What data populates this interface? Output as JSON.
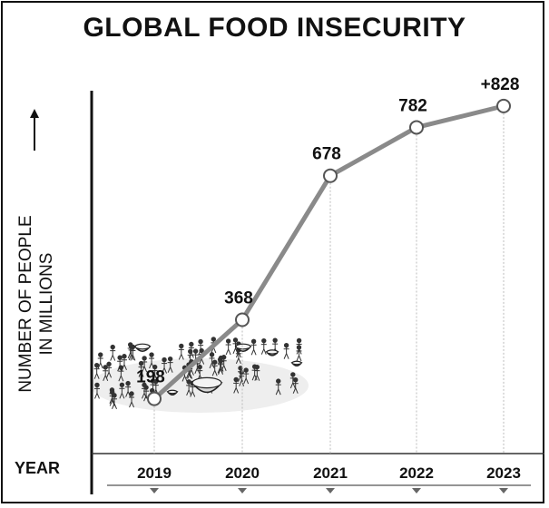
{
  "chart_data": {
    "type": "line",
    "title": "GLOBAL FOOD INSECURITY",
    "ylabel": "NUMBER OF PEOPLE IN MILLIONS",
    "ylabel_lines": [
      "NUMBER OF PEOPLE",
      "IN MILLIONS"
    ],
    "xlabel": "YEAR",
    "x": [
      "2019",
      "2020",
      "2021",
      "2022",
      "2023"
    ],
    "values": [
      198,
      368,
      678,
      782,
      828
    ],
    "data_labels": [
      "198",
      "368",
      "678",
      "782",
      "+828"
    ],
    "ylim": [
      0,
      900
    ],
    "grid": false,
    "line_color": "#8a8a8a",
    "marker_fill": "#ffffff"
  },
  "decoration": {
    "axis_arrow": "up-arrow-icon",
    "illustration": "crowd-with-food-bowls"
  }
}
